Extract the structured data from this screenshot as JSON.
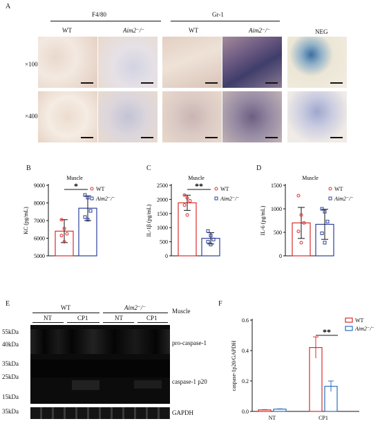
{
  "panelA": {
    "letter": "A",
    "groups": [
      {
        "title": "F4/80",
        "cols": [
          "WT",
          "Aim2⁻/⁻"
        ]
      },
      {
        "title": "Gr-1",
        "cols": [
          "WT",
          "Aim2⁻/⁻"
        ]
      },
      {
        "title": "NEG",
        "cols": []
      }
    ],
    "rows": [
      "×100",
      "×400"
    ]
  },
  "chart_data": [
    {
      "panel": "B",
      "type": "bar",
      "title": "Muscle",
      "ylabel": "KC (pg/mL)",
      "ylim": [
        5000,
        9000
      ],
      "yticks": [
        5000,
        6000,
        7000,
        8000,
        9000
      ],
      "series": [
        {
          "name": "WT",
          "mean": 6400,
          "err": 650,
          "points": [
            7050,
            6550,
            6250,
            6150,
            5800
          ],
          "color": "#d92b2b"
        },
        {
          "name": "Aim2⁻/⁻",
          "mean": 7700,
          "err": 700,
          "points": [
            8450,
            8300,
            7550,
            7200,
            7050
          ],
          "color": "#2a3f9a"
        }
      ],
      "significance": "*"
    },
    {
      "panel": "C",
      "type": "bar",
      "title": "Muscle",
      "ylabel": "IL-1β (pg/mL)",
      "ylim": [
        0,
        2500
      ],
      "yticks": [
        0,
        500,
        1000,
        1500,
        2000,
        2500
      ],
      "series": [
        {
          "name": "WT",
          "mean": 1880,
          "err": 270,
          "points": [
            2150,
            2050,
            1950,
            1800,
            1450
          ],
          "color": "#d92b2b"
        },
        {
          "name": "Aim2⁻/⁻",
          "mean": 620,
          "err": 200,
          "points": [
            880,
            720,
            580,
            500,
            400
          ],
          "color": "#2a3f9a"
        }
      ],
      "significance": "**"
    },
    {
      "panel": "D",
      "type": "bar",
      "title": "Muscle",
      "ylabel": "IL-6 (pg/mL)",
      "ylim": [
        0,
        1500
      ],
      "yticks": [
        0,
        500,
        1000,
        1500
      ],
      "series": [
        {
          "name": "WT",
          "mean": 700,
          "err": 330,
          "points": [
            1280,
            870,
            700,
            520,
            280
          ],
          "color": "#d92b2b"
        },
        {
          "name": "Aim2⁻/⁻",
          "mean": 670,
          "err": 320,
          "points": [
            1000,
            940,
            730,
            480,
            280
          ],
          "color": "#2a3f9a"
        }
      ],
      "significance": ""
    },
    {
      "panel": "F",
      "type": "bar",
      "ylabel": "caspase-1p20/GAPDH",
      "ylim": [
        0,
        0.6
      ],
      "yticks": [
        0.0,
        0.2,
        0.4,
        0.6
      ],
      "categories": [
        "NT",
        "CP1"
      ],
      "series": [
        {
          "name": "WT",
          "values": [
            0.01,
            0.42
          ],
          "errs": [
            0.002,
            0.07
          ],
          "color": "#d92b2b"
        },
        {
          "name": "Aim2⁻/⁻",
          "values": [
            0.015,
            0.165
          ],
          "errs": [
            0.002,
            0.035
          ],
          "color": "#2a6fb8"
        }
      ],
      "significance": "**"
    }
  ],
  "panelB": {
    "letter": "B"
  },
  "panelC": {
    "letter": "C"
  },
  "panelD": {
    "letter": "D"
  },
  "panelE": {
    "letter": "E",
    "genotypes": [
      "WT",
      "Aim2⁻/⁻"
    ],
    "tissue": "Muscle",
    "treatments": [
      "NT",
      "CP1",
      "NT",
      "CP1"
    ],
    "markers": [
      "55kDa",
      "40kDa",
      "35kDa",
      "25kDa",
      "15kDa",
      "35kDa"
    ],
    "band_labels": [
      "pro-caspase-1",
      "caspase-1 p20",
      "GAPDH"
    ]
  },
  "panelF": {
    "letter": "F"
  }
}
